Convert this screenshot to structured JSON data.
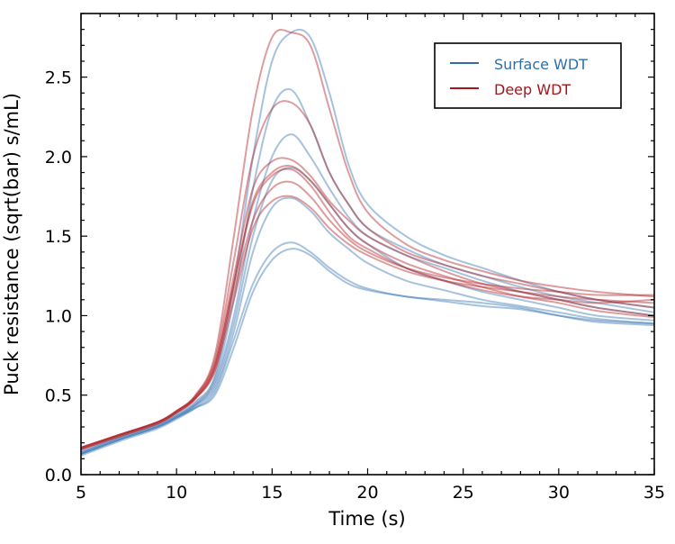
{
  "chart_data": {
    "type": "line",
    "xlabel": "Time (s)",
    "ylabel": "Puck resistance (sqrt(bar) s/mL)",
    "xlim": [
      5,
      35
    ],
    "ylim": [
      0,
      2.9
    ],
    "xticks": [
      "5",
      "10",
      "15",
      "20",
      "25",
      "30",
      "35"
    ],
    "yticks": [
      "0.0",
      "0.5",
      "1.0",
      "1.5",
      "2.0",
      "2.5"
    ],
    "grid": false,
    "legend_position": "top-right",
    "legend": [
      {
        "label": "Surface WDT",
        "color": "#2f6fa8"
      },
      {
        "label": "Deep WDT",
        "color": "#a3161b"
      }
    ],
    "x": [
      5,
      7,
      9,
      10,
      11,
      12,
      13,
      14,
      15,
      16,
      17,
      18,
      19,
      20,
      22,
      24,
      26,
      28,
      30,
      32,
      35
    ],
    "groups": [
      {
        "legend_index": 0,
        "color": "#3b78b3",
        "series": [
          [
            0.15,
            0.24,
            0.32,
            0.38,
            0.46,
            0.62,
            1.2,
            2.0,
            2.6,
            2.78,
            2.75,
            2.4,
            1.95,
            1.7,
            1.5,
            1.38,
            1.3,
            1.22,
            1.15,
            1.1,
            1.05
          ],
          [
            0.14,
            0.23,
            0.31,
            0.37,
            0.45,
            0.6,
            1.1,
            1.8,
            2.3,
            2.42,
            2.2,
            1.9,
            1.7,
            1.55,
            1.42,
            1.32,
            1.25,
            1.18,
            1.12,
            1.08,
            1.02
          ],
          [
            0.13,
            0.22,
            0.3,
            0.36,
            0.44,
            0.58,
            1.0,
            1.6,
            2.0,
            2.14,
            2.0,
            1.8,
            1.62,
            1.5,
            1.38,
            1.3,
            1.22,
            1.15,
            1.1,
            1.05,
            1.0
          ],
          [
            0.14,
            0.23,
            0.31,
            0.37,
            0.44,
            0.56,
            0.95,
            1.5,
            1.85,
            1.93,
            1.85,
            1.7,
            1.55,
            1.45,
            1.3,
            1.22,
            1.15,
            1.1,
            1.05,
            1.0,
            0.97
          ],
          [
            0.13,
            0.22,
            0.3,
            0.36,
            0.43,
            0.54,
            0.9,
            1.4,
            1.68,
            1.74,
            1.66,
            1.52,
            1.42,
            1.33,
            1.22,
            1.16,
            1.1,
            1.06,
            1.02,
            0.98,
            0.95
          ],
          [
            0.12,
            0.21,
            0.29,
            0.35,
            0.42,
            0.52,
            0.85,
            1.2,
            1.4,
            1.46,
            1.4,
            1.3,
            1.22,
            1.17,
            1.12,
            1.1,
            1.08,
            1.05,
            1.0,
            0.96,
            0.94
          ],
          [
            0.13,
            0.22,
            0.3,
            0.36,
            0.42,
            0.5,
            0.8,
            1.15,
            1.35,
            1.42,
            1.38,
            1.28,
            1.2,
            1.16,
            1.12,
            1.09,
            1.06,
            1.04,
            1.0,
            0.97,
            0.95
          ]
        ]
      },
      {
        "legend_index": 1,
        "color": "#b3262b",
        "series": [
          [
            0.17,
            0.25,
            0.33,
            0.4,
            0.5,
            0.75,
            1.5,
            2.3,
            2.75,
            2.78,
            2.7,
            2.3,
            1.9,
            1.65,
            1.45,
            1.35,
            1.28,
            1.22,
            1.18,
            1.15,
            1.12
          ],
          [
            0.17,
            0.25,
            0.33,
            0.4,
            0.5,
            0.72,
            1.35,
            2.0,
            2.3,
            2.34,
            2.2,
            1.9,
            1.7,
            1.55,
            1.4,
            1.32,
            1.25,
            1.2,
            1.15,
            1.1,
            1.05
          ],
          [
            0.17,
            0.25,
            0.33,
            0.4,
            0.49,
            0.7,
            1.25,
            1.8,
            1.97,
            1.98,
            1.88,
            1.72,
            1.6,
            1.5,
            1.38,
            1.28,
            1.2,
            1.15,
            1.1,
            1.05,
            1.0
          ],
          [
            0.17,
            0.25,
            0.33,
            0.4,
            0.49,
            0.68,
            1.2,
            1.72,
            1.9,
            1.94,
            1.85,
            1.7,
            1.55,
            1.45,
            1.33,
            1.25,
            1.18,
            1.12,
            1.08,
            1.03,
            0.99
          ],
          [
            0.16,
            0.25,
            0.33,
            0.39,
            0.48,
            0.68,
            1.2,
            1.7,
            1.88,
            1.92,
            1.82,
            1.65,
            1.5,
            1.42,
            1.3,
            1.22,
            1.16,
            1.12,
            1.1,
            1.08,
            1.1
          ],
          [
            0.16,
            0.24,
            0.32,
            0.39,
            0.48,
            0.66,
            1.15,
            1.6,
            1.8,
            1.84,
            1.75,
            1.6,
            1.48,
            1.4,
            1.3,
            1.24,
            1.2,
            1.17,
            1.15,
            1.13,
            1.13
          ],
          [
            0.16,
            0.24,
            0.32,
            0.39,
            0.48,
            0.65,
            1.1,
            1.55,
            1.72,
            1.75,
            1.68,
            1.55,
            1.45,
            1.38,
            1.28,
            1.22,
            1.18,
            1.15,
            1.12,
            1.1,
            1.08
          ]
        ]
      }
    ]
  }
}
